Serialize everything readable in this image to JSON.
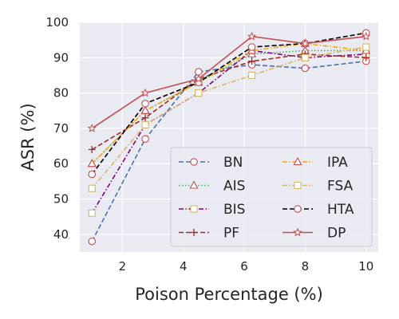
{
  "chart_data": {
    "type": "line",
    "xlabel": "Poison Percentage (%)",
    "ylabel": "ASR (%)",
    "xlim": [
      0.6,
      10.4
    ],
    "ylim": [
      35,
      100
    ],
    "xticks": [
      2,
      4,
      6,
      8,
      10
    ],
    "yticks": [
      40,
      50,
      60,
      70,
      80,
      90,
      100
    ],
    "x": [
      1,
      2.75,
      4.5,
      6.25,
      8,
      10
    ],
    "grid": true,
    "background": "#eaeaf2",
    "legend": {
      "placement": "lower-right",
      "columns": 2
    },
    "series": [
      {
        "name": "BN",
        "values": [
          38,
          67,
          86,
          88,
          87,
          89
        ],
        "color": "#4c72b0",
        "dash": "dashed",
        "marker": "circle"
      },
      {
        "name": "AIS",
        "values": [
          60,
          75,
          83,
          91,
          92,
          92
        ],
        "color": "#55a868",
        "dash": "dotted",
        "marker": "triangle"
      },
      {
        "name": "BIS",
        "values": [
          46,
          71,
          80,
          92,
          90,
          91
        ],
        "color": "#800080",
        "dash": "dashdot",
        "marker": "square"
      },
      {
        "name": "PF",
        "values": [
          64,
          73,
          84,
          89,
          91,
          90
        ],
        "color": "#a52a2a",
        "dash": "dashed",
        "marker": "plus"
      },
      {
        "name": "IPA",
        "values": [
          60,
          75,
          83,
          92,
          94,
          92
        ],
        "color": "#ffa500",
        "dash": "dashdot",
        "marker": "triangle"
      },
      {
        "name": "FSA",
        "values": [
          53,
          71,
          80,
          85,
          90,
          93
        ],
        "color": "#d4b96a",
        "dash": "dashdot",
        "marker": "square"
      },
      {
        "name": "HTA",
        "values": [
          57,
          77,
          83,
          93,
          94,
          97
        ],
        "color": "#000000",
        "dash": "dashed",
        "marker": "circle"
      },
      {
        "name": "DP",
        "values": [
          70,
          80,
          84,
          96,
          94,
          96
        ],
        "color": "#c44e52",
        "dash": "solid",
        "marker": "star"
      }
    ],
    "marker_edge_color": "#c44e52",
    "marker_face_color": "#ffffff"
  }
}
